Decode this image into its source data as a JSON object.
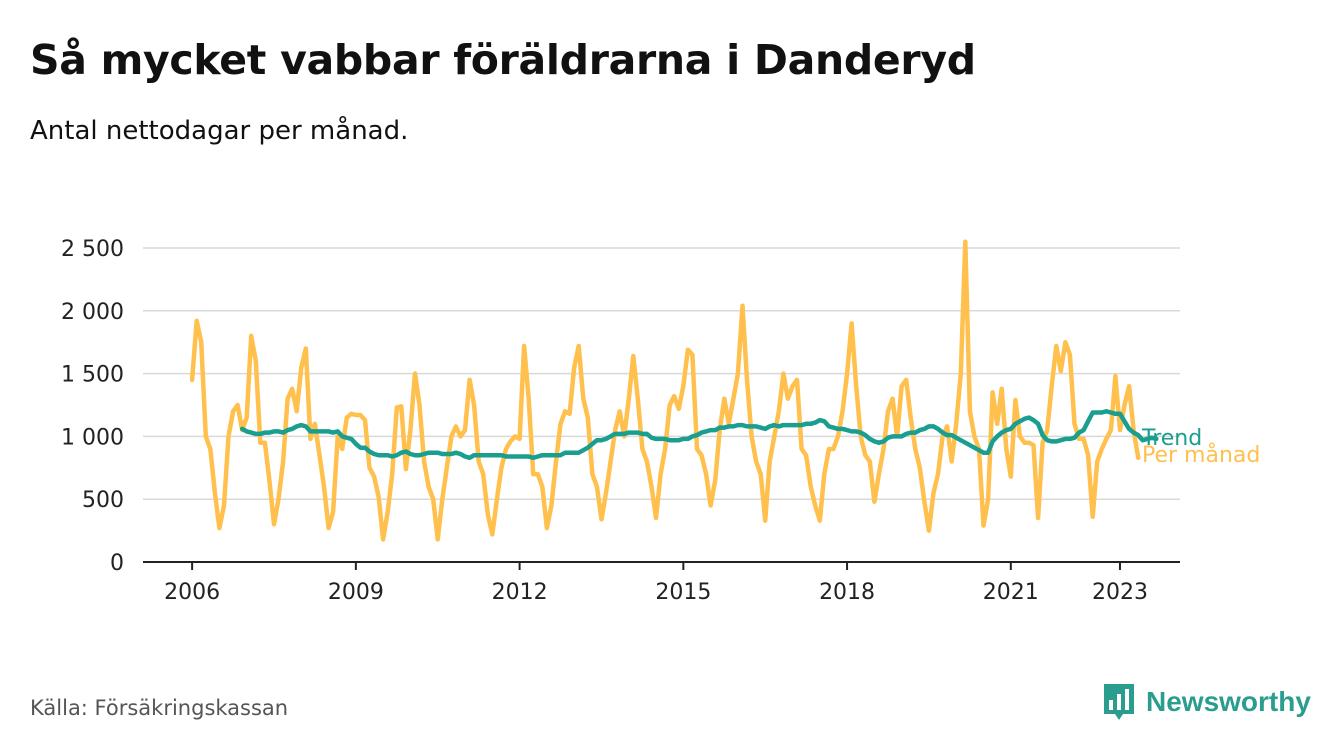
{
  "title": "Så mycket vabbar föräldrarna i Danderyd",
  "subtitle": "Antal nettodagar per månad.",
  "source": "Källa: Försäkringskassan",
  "brand": {
    "name": "Newsworthy",
    "icon": "newsworthy-logo-icon",
    "color": "#2a9d8f"
  },
  "chart_data": {
    "type": "line",
    "ylim": [
      0,
      2600
    ],
    "yticks": [
      0,
      500,
      1000,
      1500,
      2000,
      2500
    ],
    "ytick_labels": [
      "0",
      "500",
      "1 000",
      "1 500",
      "2 000",
      "2 500"
    ],
    "xlim": [
      2005.1,
      2024.1
    ],
    "xticks": [
      2006,
      2009,
      2012,
      2015,
      2018,
      2021,
      2023
    ],
    "xtick_labels": [
      "2006",
      "2009",
      "2012",
      "2015",
      "2018",
      "2021",
      "2023"
    ],
    "grid": true,
    "series": [
      {
        "name": "Per månad",
        "color": "#ffc04d",
        "start": [
          2006,
          1
        ],
        "values": [
          1450,
          1920,
          1750,
          1000,
          900,
          550,
          270,
          450,
          1000,
          1200,
          1250,
          1050,
          1150,
          1800,
          1600,
          950,
          950,
          650,
          300,
          500,
          800,
          1300,
          1380,
          1200,
          1550,
          1700,
          980,
          1100,
          850,
          600,
          270,
          400,
          1000,
          900,
          1150,
          1180,
          1170,
          1170,
          1130,
          750,
          680,
          520,
          180,
          400,
          700,
          1230,
          1240,
          740,
          1050,
          1500,
          1250,
          800,
          600,
          500,
          180,
          500,
          750,
          1000,
          1080,
          1000,
          1050,
          1450,
          1250,
          800,
          700,
          380,
          220,
          500,
          750,
          900,
          960,
          1000,
          980,
          1720,
          1300,
          700,
          700,
          600,
          270,
          450,
          800,
          1100,
          1200,
          1180,
          1550,
          1720,
          1300,
          1150,
          700,
          600,
          340,
          550,
          800,
          1050,
          1200,
          1000,
          1300,
          1640,
          1300,
          900,
          800,
          600,
          350,
          700,
          900,
          1250,
          1320,
          1220,
          1400,
          1690,
          1650,
          900,
          850,
          700,
          450,
          650,
          1050,
          1300,
          1100,
          1300,
          1500,
          2040,
          1450,
          1000,
          800,
          700,
          330,
          800,
          1000,
          1200,
          1500,
          1300,
          1400,
          1450,
          900,
          850,
          600,
          450,
          330,
          700,
          900,
          900,
          1000,
          1200,
          1500,
          1900,
          1400,
          1000,
          850,
          800,
          480,
          700,
          900,
          1200,
          1300,
          1000,
          1400,
          1450,
          1150,
          900,
          750,
          480,
          250,
          550,
          700,
          1000,
          1080,
          800,
          1100,
          1500,
          2550,
          1200,
          1000,
          900,
          290,
          500,
          1350,
          1100,
          1380,
          900,
          680,
          1290,
          1000,
          950,
          950,
          930,
          350,
          950,
          1050,
          1400,
          1720,
          1520,
          1750,
          1650,
          1100,
          980,
          980,
          850,
          360,
          800,
          900,
          980,
          1050,
          1480,
          1050,
          1250,
          1400,
          1050,
          830
        ]
      },
      {
        "name": "Trend",
        "color": "#1a9e8f",
        "start": [
          2006,
          12
        ],
        "values": [
          1060,
          1040,
          1030,
          1020,
          1020,
          1030,
          1030,
          1040,
          1040,
          1030,
          1050,
          1060,
          1080,
          1090,
          1080,
          1040,
          1040,
          1040,
          1040,
          1040,
          1030,
          1040,
          1000,
          990,
          980,
          940,
          910,
          910,
          880,
          860,
          850,
          850,
          850,
          840,
          850,
          870,
          880,
          860,
          850,
          850,
          860,
          870,
          870,
          870,
          860,
          860,
          860,
          870,
          860,
          840,
          830,
          850,
          850,
          850,
          850,
          850,
          850,
          850,
          840,
          840,
          840,
          840,
          840,
          840,
          830,
          840,
          850,
          850,
          850,
          850,
          850,
          870,
          870,
          870,
          870,
          890,
          910,
          940,
          970,
          970,
          980,
          1000,
          1020,
          1020,
          1020,
          1030,
          1030,
          1030,
          1020,
          1020,
          990,
          980,
          980,
          980,
          970,
          970,
          970,
          980,
          980,
          1000,
          1010,
          1030,
          1040,
          1050,
          1050,
          1070,
          1070,
          1080,
          1080,
          1090,
          1090,
          1080,
          1080,
          1080,
          1070,
          1060,
          1080,
          1090,
          1080,
          1090,
          1090,
          1090,
          1090,
          1090,
          1100,
          1100,
          1110,
          1130,
          1120,
          1080,
          1070,
          1060,
          1060,
          1050,
          1040,
          1040,
          1030,
          1010,
          980,
          960,
          950,
          960,
          990,
          1000,
          1000,
          1000,
          1020,
          1030,
          1030,
          1050,
          1060,
          1080,
          1080,
          1060,
          1030,
          1010,
          1010,
          990,
          970,
          950,
          930,
          910,
          890,
          870,
          870,
          960,
          1000,
          1030,
          1050,
          1060,
          1100,
          1120,
          1140,
          1150,
          1130,
          1100,
          1010,
          970,
          960,
          960,
          970,
          980,
          980,
          990,
          1030,
          1050,
          1120,
          1190,
          1190,
          1190,
          1200,
          1190,
          1180,
          1180,
          1120,
          1060,
          1030,
          1010,
          970,
          980,
          990,
          980
        ]
      }
    ]
  }
}
